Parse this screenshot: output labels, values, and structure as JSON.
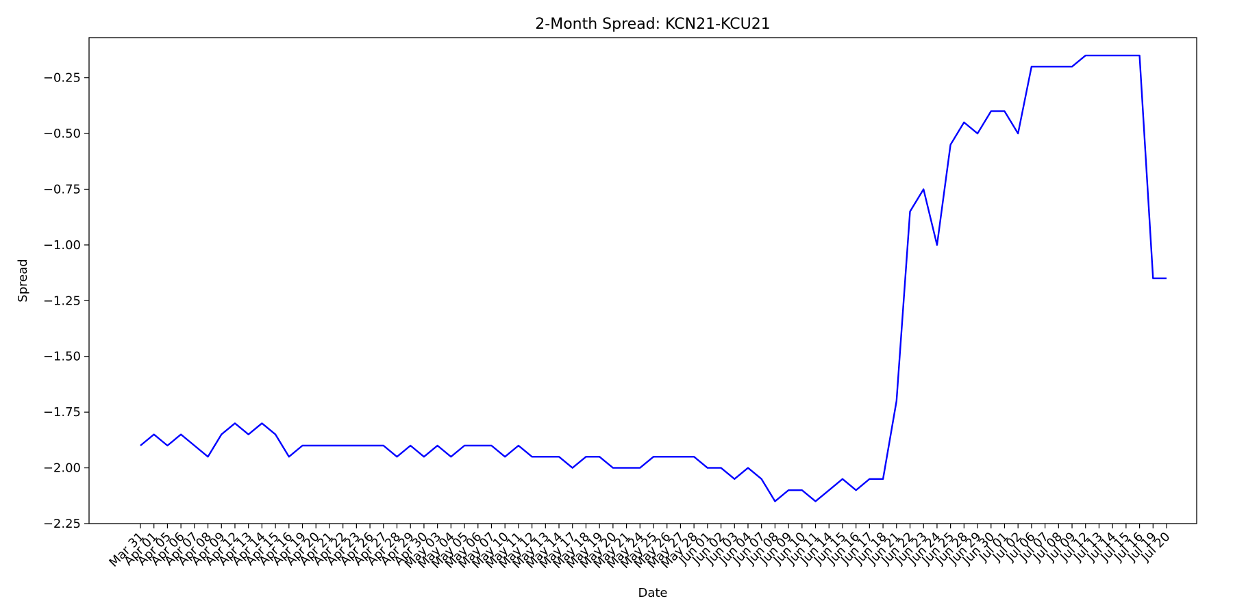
{
  "chart_data": {
    "type": "line",
    "title": "2-Month Spread: KCN21-KCU21",
    "xlabel": "Date",
    "ylabel": "Spread",
    "ylim": [
      -2.25,
      -0.07
    ],
    "yticks": [
      -2.25,
      -2.0,
      -1.75,
      -1.5,
      -1.25,
      -1.0,
      -0.75,
      -0.5,
      -0.25
    ],
    "ytick_labels": [
      "−2.25",
      "−2.00",
      "−1.75",
      "−1.50",
      "−1.25",
      "−1.00",
      "−0.75",
      "−0.50",
      "−0.25"
    ],
    "grid": false,
    "line_color": "#0000ff",
    "categories": [
      "Mar 31",
      "Apr 01",
      "Apr 05",
      "Apr 06",
      "Apr 07",
      "Apr 08",
      "Apr 09",
      "Apr 12",
      "Apr 13",
      "Apr 14",
      "Apr 15",
      "Apr 16",
      "Apr 19",
      "Apr 20",
      "Apr 21",
      "Apr 22",
      "Apr 23",
      "Apr 26",
      "Apr 27",
      "Apr 28",
      "Apr 29",
      "Apr 30",
      "May 03",
      "May 04",
      "May 05",
      "May 06",
      "May 07",
      "May 10",
      "May 11",
      "May 12",
      "May 13",
      "May 14",
      "May 17",
      "May 18",
      "May 19",
      "May 20",
      "May 21",
      "May 24",
      "May 25",
      "May 26",
      "May 27",
      "May 28",
      "Jun 01",
      "Jun 02",
      "Jun 03",
      "Jun 04",
      "Jun 07",
      "Jun 08",
      "Jun 09",
      "Jun 10",
      "Jun 11",
      "Jun 14",
      "Jun 15",
      "Jun 16",
      "Jun 17",
      "Jun 18",
      "Jun 21",
      "Jun 22",
      "Jun 23",
      "Jun 24",
      "Jun 25",
      "Jun 28",
      "Jun 29",
      "Jun 30",
      "Jul 01",
      "Jul 02",
      "Jul 06",
      "Jul 07",
      "Jul 08",
      "Jul 09",
      "Jul 12",
      "Jul 13",
      "Jul 14",
      "Jul 15",
      "Jul 16",
      "Jul 19",
      "Jul 20"
    ],
    "values": [
      -1.9,
      -1.85,
      -1.9,
      -1.85,
      -1.9,
      -1.95,
      -1.85,
      -1.8,
      -1.85,
      -1.8,
      -1.85,
      -1.95,
      -1.9,
      -1.9,
      -1.9,
      -1.9,
      -1.9,
      -1.9,
      -1.9,
      -1.95,
      -1.9,
      -1.95,
      -1.9,
      -1.95,
      -1.9,
      -1.9,
      -1.9,
      -1.95,
      -1.9,
      -1.95,
      -1.95,
      -1.95,
      -2.0,
      -1.95,
      -1.95,
      -2.0,
      -2.0,
      -2.0,
      -1.95,
      -1.95,
      -1.95,
      -1.95,
      -2.0,
      -2.0,
      -2.05,
      -2.0,
      -2.05,
      -2.15,
      -2.1,
      -2.1,
      -2.15,
      -2.1,
      -2.05,
      -2.1,
      -2.05,
      -2.05,
      -1.7,
      -0.85,
      -0.75,
      -1.0,
      -0.55,
      -0.45,
      -0.5,
      -0.4,
      -0.4,
      -0.5,
      -0.2,
      -0.2,
      -0.2,
      -0.2,
      -0.15,
      -0.15,
      -0.15,
      -0.15,
      -0.15,
      -1.15,
      -1.15
    ]
  }
}
